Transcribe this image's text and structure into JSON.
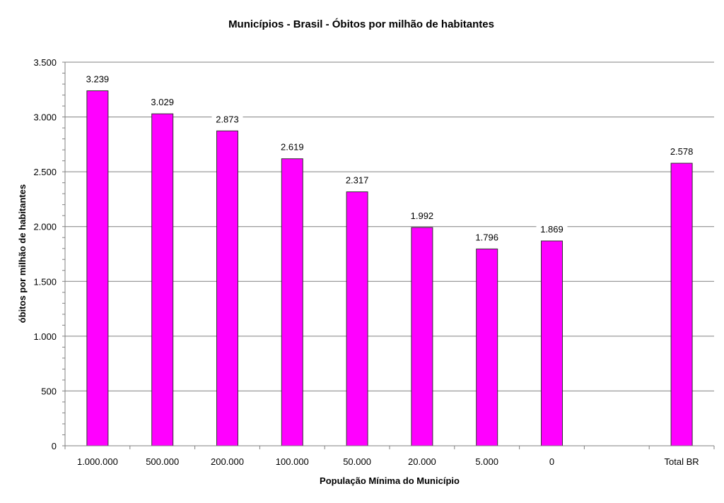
{
  "chart_data": {
    "type": "bar",
    "title": "Municípios - Brasil - Óbitos por milhão de habitantes",
    "xlabel": "População Mínima do Município",
    "ylabel": "óbitos por milhão de habitantes",
    "categories": [
      "1.000.000",
      "500.000",
      "200.000",
      "100.000",
      "50.000",
      "20.000",
      "5.000",
      "0",
      "",
      "Total BR"
    ],
    "values": [
      3239,
      3029,
      2873,
      2619,
      2317,
      1992,
      1796,
      1869,
      null,
      2578
    ],
    "data_labels": [
      "3.239",
      "3.029",
      "2.873",
      "2.619",
      "2.317",
      "1.992",
      "1.796",
      "1.869",
      "",
      "2.578"
    ],
    "ylim": [
      0,
      3500
    ],
    "y_ticks": [
      0,
      500,
      1000,
      1500,
      2000,
      2500,
      3000,
      3500
    ],
    "y_tick_labels": [
      "0",
      "500",
      "1.000",
      "1.500",
      "2.000",
      "2.500",
      "3.000",
      "3.500"
    ],
    "y_minor_step": 100,
    "grid": true,
    "legend": "none",
    "colors": {
      "bar": "#ff00ff",
      "bar_border": "#333333",
      "grid": "#808080"
    }
  }
}
